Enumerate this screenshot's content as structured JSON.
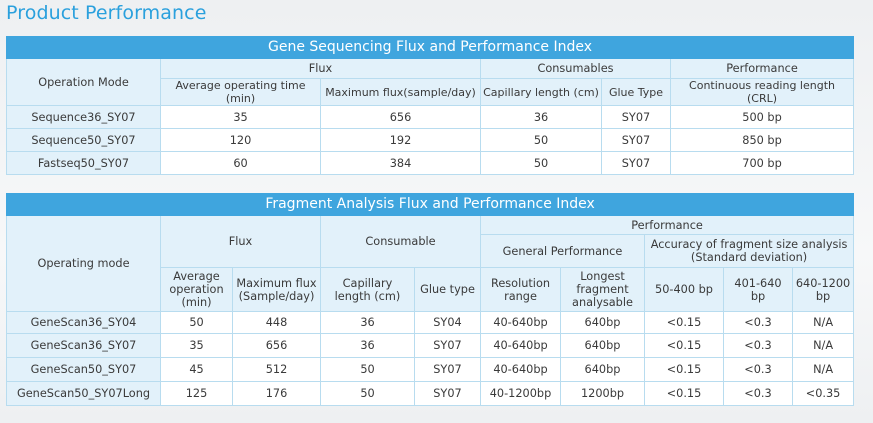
{
  "page_title": "Product Performance",
  "table1": {
    "title": "Gene Sequencing Flux and Performance Index",
    "headers": {
      "mode": "Operation Mode",
      "flux": "Flux",
      "consumables": "Consumables",
      "performance": "Performance",
      "avg_time": "Average operating time (min)",
      "max_flux": "Maximum flux(sample/day)",
      "capillary": "Capillary length (cm)",
      "glue": "Glue Type",
      "crl": "Continuous reading length (CRL)"
    },
    "rows": [
      {
        "mode": "Sequence36_SY07",
        "avg_time": "35",
        "max_flux": "656",
        "capillary": "36",
        "glue": "SY07",
        "crl": "500 bp"
      },
      {
        "mode": "Sequence50_SY07",
        "avg_time": "120",
        "max_flux": "192",
        "capillary": "50",
        "glue": "SY07",
        "crl": "850 bp"
      },
      {
        "mode": "Fastseq50_SY07",
        "avg_time": "60",
        "max_flux": "384",
        "capillary": "50",
        "glue": "SY07",
        "crl": "700 bp"
      }
    ]
  },
  "table2": {
    "title": "Fragment Analysis Flux and Performance Index",
    "headers": {
      "mode": "Operating mode",
      "flux": "Flux",
      "consumable": "Consumable",
      "performance": "Performance",
      "general": "General Performance",
      "accuracy": "Accuracy of fragment size analysis (Standard deviation)",
      "avg_op": "Average operation (min)",
      "max_flux": "Maximum flux (Sample/day)",
      "capillary": "Capillary length (cm)",
      "glue": "Glue type",
      "resolution": "Resolution range",
      "longest": "Longest fragment analysable",
      "r1": "50-400 bp",
      "r2": "401-640 bp",
      "r3": "640-1200 bp"
    },
    "rows": [
      {
        "mode": "GeneScan36_SY04",
        "avg": "50",
        "max": "448",
        "cap": "36",
        "glue": "SY04",
        "res": "40-640bp",
        "longest": "640bp",
        "r1": "<0.15",
        "r2": "<0.3",
        "r3": "N/A"
      },
      {
        "mode": "GeneScan36_SY07",
        "avg": "35",
        "max": "656",
        "cap": "36",
        "glue": "SY07",
        "res": "40-640bp",
        "longest": "640bp",
        "r1": "<0.15",
        "r2": "<0.3",
        "r3": "N/A"
      },
      {
        "mode": "GeneScan50_SY07",
        "avg": "45",
        "max": "512",
        "cap": "50",
        "glue": "SY07",
        "res": "40-640bp",
        "longest": "640bp",
        "r1": "<0.15",
        "r2": "<0.3",
        "r3": "N/A"
      },
      {
        "mode": "GeneScan50_SY07Long",
        "avg": "125",
        "max": "176",
        "cap": "50",
        "glue": "SY07",
        "res": "40-1200bp",
        "longest": "1200bp",
        "r1": "<0.15",
        "r2": "<0.3",
        "r3": "<0.35"
      }
    ]
  }
}
